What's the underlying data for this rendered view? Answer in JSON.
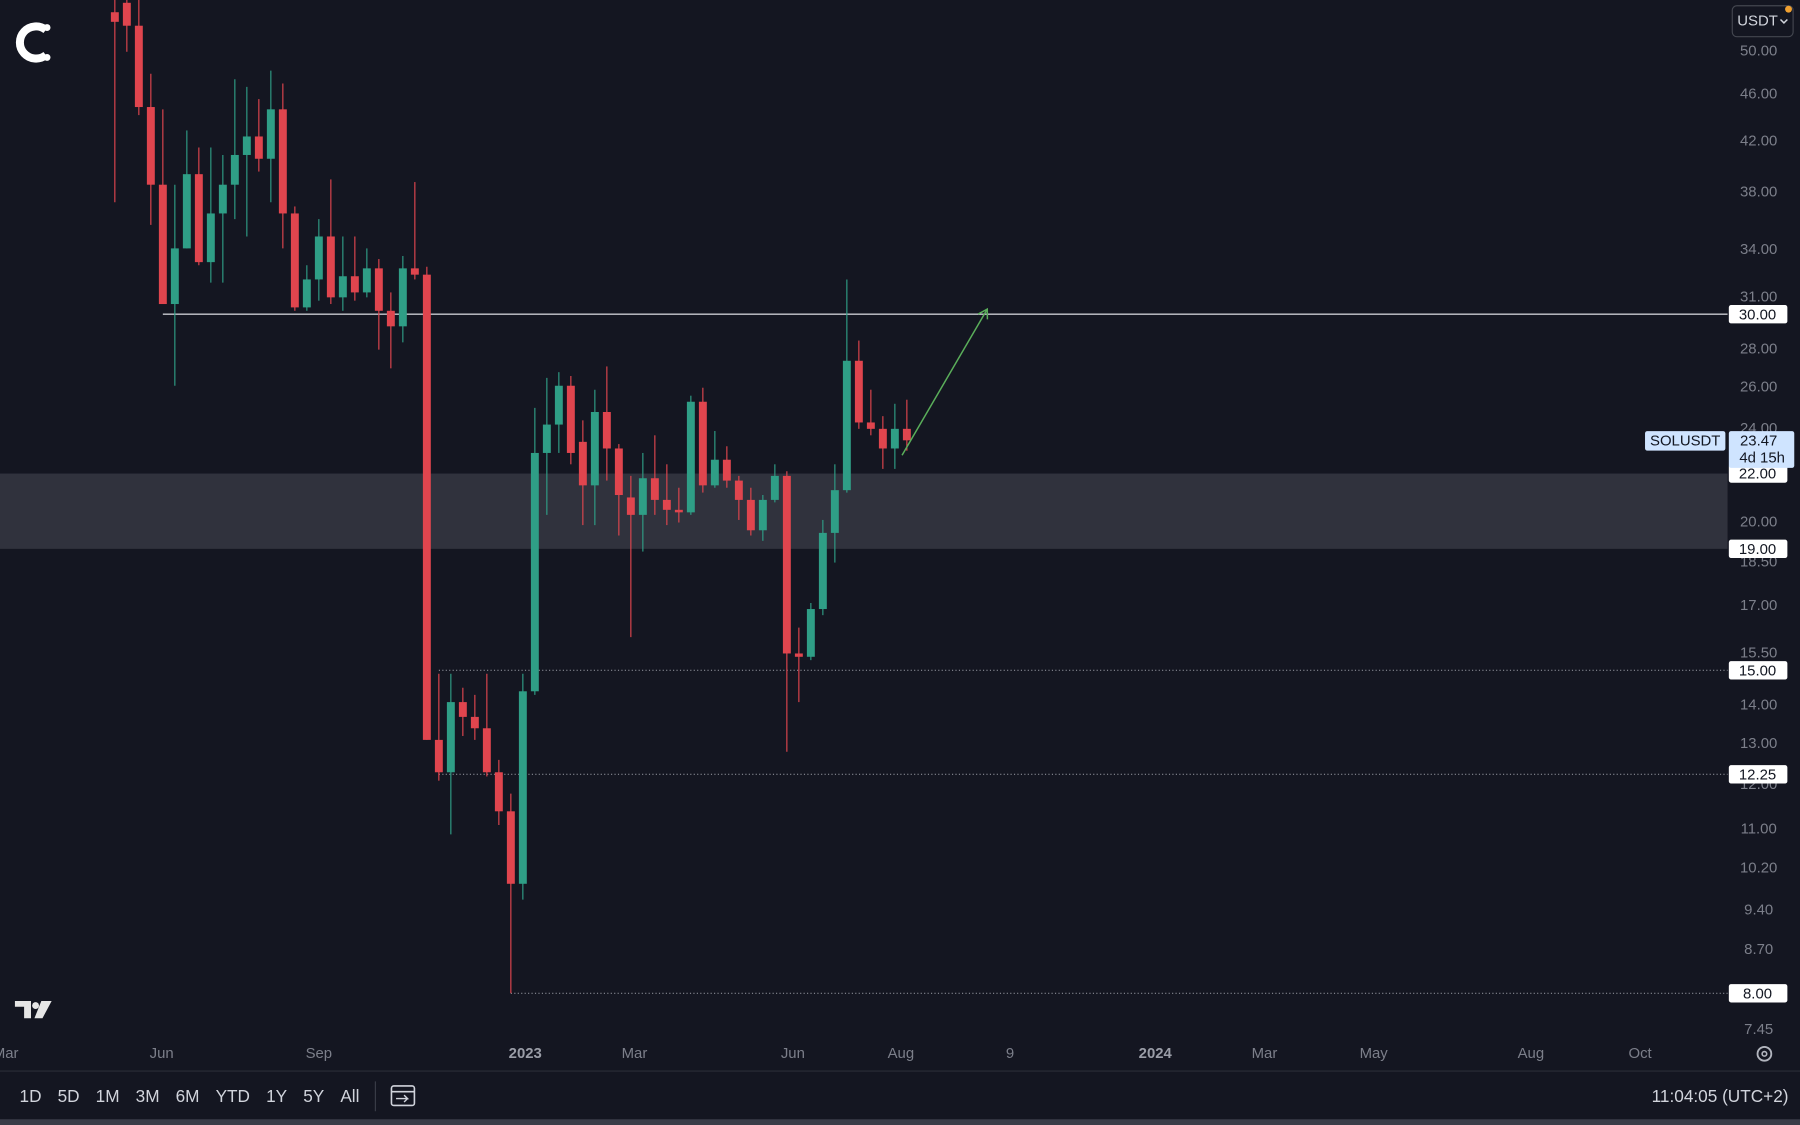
{
  "chart_data": {
    "type": "candlestick",
    "symbol": "SOLUSDT",
    "currency": "USDT",
    "open": [
      54.0,
      55.0,
      52.6,
      44.9,
      38.6,
      30.6,
      34.1,
      39.4,
      33.2,
      36.5,
      38.6,
      40.9,
      42.4,
      40.6,
      44.7,
      36.5,
      30.4,
      32.1,
      34.9,
      31.0,
      32.3,
      31.3,
      32.8,
      30.2,
      29.3,
      32.8,
      32.4,
      13.1,
      12.3,
      14.1,
      13.7,
      13.4,
      12.3,
      11.4,
      9.9,
      14.4,
      22.9,
      24.2,
      26.1,
      23.4,
      21.5,
      24.8,
      23.1,
      21.0,
      20.3,
      21.8,
      20.9,
      20.5,
      20.4,
      25.3,
      21.5,
      22.6,
      21.7,
      20.9,
      19.7,
      20.9,
      21.9,
      15.5,
      15.4,
      16.9,
      19.6,
      21.3,
      27.4,
      24.3,
      24.0,
      23.1,
      24.0
    ],
    "high": [
      55.3,
      55.3,
      55.3,
      47.9,
      44.7,
      38.6,
      42.9,
      41.5,
      41.5,
      40.9,
      47.4,
      46.7,
      45.6,
      48.2,
      47.0,
      37.0,
      33.0,
      36.1,
      39.0,
      34.9,
      34.9,
      34.1,
      33.4,
      31.3,
      33.6,
      38.8,
      32.9,
      14.9,
      14.9,
      14.5,
      14.3,
      14.9,
      12.6,
      11.8,
      14.9,
      25.0,
      26.5,
      26.8,
      26.6,
      24.4,
      25.9,
      27.1,
      23.3,
      21.9,
      22.9,
      23.7,
      22.4,
      21.4,
      25.6,
      26.0,
      23.9,
      23.2,
      21.9,
      21.4,
      21.1,
      22.4,
      22.1,
      16.3,
      17.1,
      20.1,
      22.4,
      32.1,
      28.5,
      25.9,
      24.6,
      25.2,
      25.4
    ],
    "low": [
      37.3,
      50.0,
      44.2,
      35.7,
      30.6,
      26.1,
      34.1,
      33.0,
      31.9,
      31.9,
      36.1,
      34.9,
      39.6,
      37.3,
      34.1,
      30.2,
      30.2,
      30.8,
      30.6,
      30.2,
      30.8,
      31.0,
      28.0,
      27.0,
      28.4,
      32.1,
      13.1,
      12.1,
      10.9,
      13.2,
      13.1,
      12.2,
      11.1,
      8.0,
      9.6,
      14.3,
      20.3,
      22.9,
      22.4,
      19.9,
      19.9,
      21.7,
      19.5,
      16.0,
      18.9,
      20.3,
      19.9,
      20.0,
      20.3,
      21.2,
      21.4,
      21.4,
      20.1,
      19.5,
      19.3,
      20.8,
      12.8,
      14.1,
      15.3,
      16.7,
      18.5,
      21.2,
      24.0,
      23.7,
      22.2,
      22.2,
      23.0
    ],
    "close": [
      53.0,
      52.6,
      44.9,
      38.6,
      30.6,
      34.1,
      39.4,
      33.2,
      36.5,
      38.6,
      40.9,
      42.4,
      40.6,
      44.7,
      36.5,
      30.4,
      32.1,
      34.9,
      31.0,
      32.3,
      31.3,
      32.8,
      30.2,
      29.3,
      32.8,
      32.4,
      13.1,
      12.3,
      14.1,
      13.7,
      13.4,
      12.3,
      11.4,
      9.9,
      14.4,
      22.9,
      24.2,
      26.1,
      22.9,
      21.5,
      24.8,
      23.1,
      21.1,
      20.3,
      21.8,
      20.9,
      20.5,
      20.4,
      25.3,
      21.5,
      22.6,
      21.7,
      20.9,
      19.7,
      20.9,
      21.9,
      15.5,
      15.4,
      16.9,
      19.6,
      21.3,
      27.4,
      24.3,
      24.0,
      23.1,
      24.0,
      23.47
    ],
    "countdown": "4d 15h",
    "up_color": "#2f9e86",
    "down_color": "#e0454e",
    "log_scale": true,
    "grid": false,
    "ylim": [
      7.32,
      55.3
    ],
    "yticks": [
      {
        "value": 50,
        "label": "50.00"
      },
      {
        "value": 46,
        "label": "46.00"
      },
      {
        "value": 42,
        "label": "42.00"
      },
      {
        "value": 38,
        "label": "38.00"
      },
      {
        "value": 34,
        "label": "34.00"
      },
      {
        "value": 31,
        "label": "31.00"
      },
      {
        "value": 28,
        "label": "28.00"
      },
      {
        "value": 26,
        "label": "26.00"
      },
      {
        "value": 24,
        "label": "24.00"
      },
      {
        "value": 20,
        "label": "20.00"
      },
      {
        "value": 18.5,
        "label": "18.50"
      },
      {
        "value": 17,
        "label": "17.00"
      },
      {
        "value": 15.5,
        "label": "15.50"
      },
      {
        "value": 14,
        "label": "14.00"
      },
      {
        "value": 13,
        "label": "13.00"
      },
      {
        "value": 12,
        "label": "12.00"
      },
      {
        "value": 11,
        "label": "11.00"
      },
      {
        "value": 10.2,
        "label": "10.20"
      },
      {
        "value": 9.4,
        "label": "9.40"
      },
      {
        "value": 8.7,
        "label": "8.70"
      },
      {
        "value": 7.45,
        "label": "7.45"
      }
    ],
    "xlim": [
      -9.57,
      134.4
    ],
    "xticks": [
      {
        "value": -9.1,
        "label": "Mar"
      },
      {
        "value": 3.9,
        "label": "Jun"
      },
      {
        "value": 17.0,
        "label": "Sep"
      },
      {
        "value": 34.2,
        "label": "2023"
      },
      {
        "value": 43.3,
        "label": "Mar"
      },
      {
        "value": 56.5,
        "label": "Jun"
      },
      {
        "value": 65.5,
        "label": "Aug"
      },
      {
        "value": 74.6,
        "label": "9"
      },
      {
        "value": 86.7,
        "label": "2024"
      },
      {
        "value": 95.8,
        "label": "Mar"
      },
      {
        "value": 104.9,
        "label": "May"
      },
      {
        "value": 118.0,
        "label": "Aug"
      },
      {
        "value": 127.1,
        "label": "Oct"
      }
    ],
    "levels": [
      {
        "value": 30,
        "label": "30.00",
        "style": "solid",
        "start_index": 4
      },
      {
        "value": 15,
        "label": "15.00",
        "style": "dotted",
        "start_index": 27
      },
      {
        "value": 12.25,
        "label": "12.25",
        "style": "dotted",
        "start_index": 27
      },
      {
        "value": 8,
        "label": "8.00",
        "style": "dotted",
        "start_index": 33
      }
    ],
    "zone": {
      "low": {
        "value": 19,
        "label": "19.00"
      },
      "high": {
        "value": 22,
        "label": "22.00"
      }
    },
    "arrow": {
      "from": [
        65.6,
        22.8
      ],
      "to": [
        72.7,
        30.3
      ],
      "color": "#5aae5a"
    }
  },
  "toolbar": {
    "ranges": [
      "1D",
      "5D",
      "1M",
      "3M",
      "6M",
      "YTD",
      "1Y",
      "5Y",
      "All"
    ],
    "clock": "11:04:05 (UTC+2)"
  }
}
